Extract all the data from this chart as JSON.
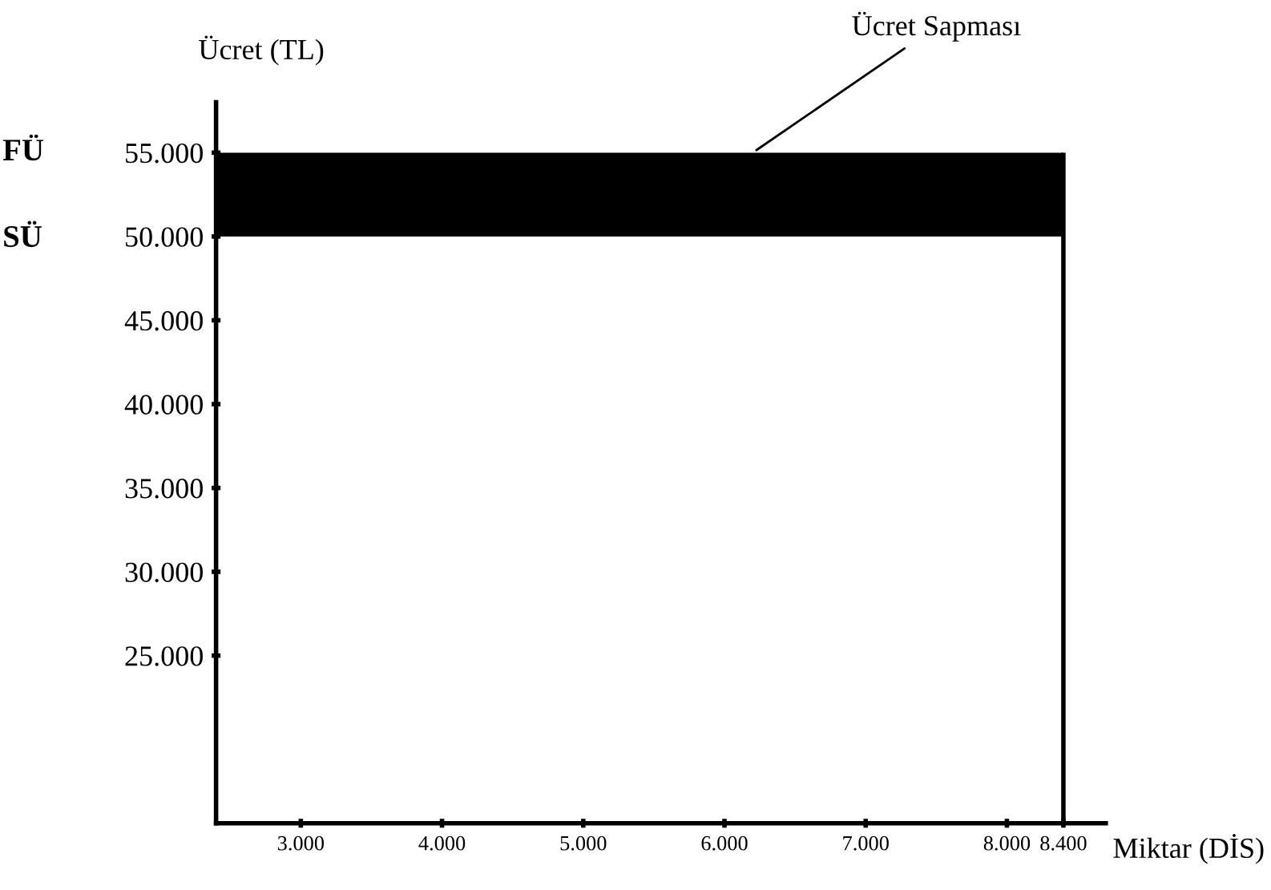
{
  "chart_data": {
    "type": "area",
    "ylabel": "Ücret (TL)",
    "xlabel": "Miktar (DİS)",
    "bands": [
      {
        "axis": "y",
        "from": 50000,
        "to": 55000,
        "color": "#000000"
      }
    ],
    "ref_lines": [
      {
        "axis": "x",
        "value": 8400,
        "color": "#000000"
      }
    ],
    "annotations": [
      {
        "text": "Ücret Sapması",
        "x": 6200,
        "y": 55000
      },
      "FÜ",
      "SÜ"
    ],
    "xlim": [
      2400,
      8700
    ],
    "ylim": [
      15000,
      58000
    ],
    "xticks": [
      {
        "value": 3000,
        "label": "3.000"
      },
      {
        "value": 4000,
        "label": "4.000"
      },
      {
        "value": 5000,
        "label": "5.000"
      },
      {
        "value": 6000,
        "label": "6.000"
      },
      {
        "value": 7000,
        "label": "7.000"
      },
      {
        "value": 8000,
        "label": "8.000"
      },
      {
        "value": 8400,
        "label": "8.400"
      }
    ],
    "yticks": [
      {
        "value": 25000,
        "label": "25.000"
      },
      {
        "value": 30000,
        "label": "30.000"
      },
      {
        "value": 35000,
        "label": "35.000"
      },
      {
        "value": 40000,
        "label": "40.000"
      },
      {
        "value": 45000,
        "label": "45.000"
      },
      {
        "value": 50000,
        "label": "50.000"
      },
      {
        "value": 55000,
        "label": "55.000"
      }
    ],
    "grid": false
  }
}
